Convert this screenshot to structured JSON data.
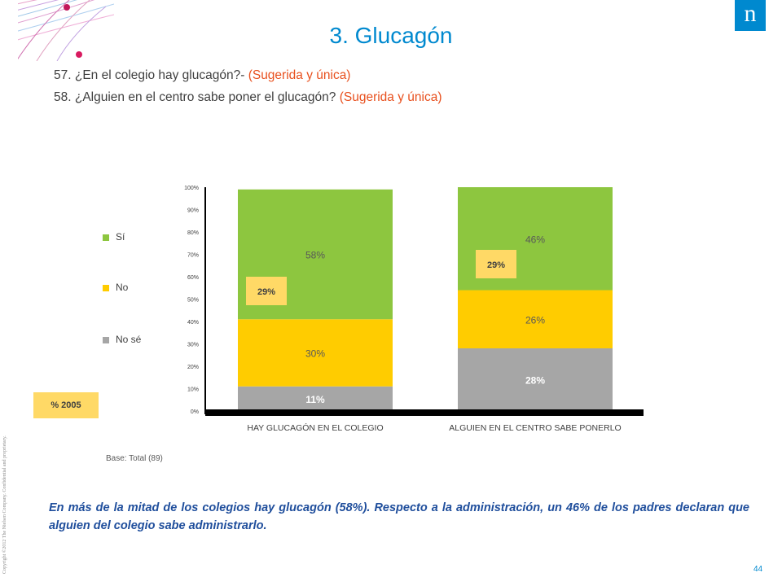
{
  "header": {
    "title": "3. Glucagón",
    "logo_letter": "n",
    "questions": [
      {
        "text": "57. ¿En el colegio hay glucagón?- ",
        "tag": "(Sugerida y única)"
      },
      {
        "text": "58. ¿Alguien en el centro sabe poner el glucagón? ",
        "tag": "(Sugerida y única)"
      }
    ]
  },
  "legend": [
    {
      "label": "Sí",
      "color": "#8dc63f"
    },
    {
      "label": "No",
      "color": "#ffcc00"
    },
    {
      "label": "No sé",
      "color": "#a6a6a6"
    }
  ],
  "year_label": "% 2005",
  "base_note": "Base: Total (89)",
  "chart_data": {
    "type": "bar",
    "stacked": true,
    "categories": [
      "HAY GLUCAGÓN EN EL COLEGIO",
      "ALGUIEN EN EL CENTRO SABE PONERLO"
    ],
    "series": [
      {
        "name": "No sé",
        "color": "#a6a6a6",
        "values": [
          11,
          28
        ],
        "labels": [
          "11%",
          "28%"
        ]
      },
      {
        "name": "No",
        "color": "#ffcc00",
        "values": [
          30,
          26
        ],
        "labels": [
          "30%",
          "26%"
        ]
      },
      {
        "name": "Sí",
        "color": "#8dc63f",
        "values": [
          58,
          46
        ],
        "labels": [
          "58%",
          "46%"
        ]
      }
    ],
    "comparison_2005": {
      "values": [
        29,
        29
      ],
      "labels": [
        "29%",
        "29%"
      ],
      "color": "#ffd966"
    },
    "ylim": [
      0,
      100
    ],
    "yticks": [
      "0%",
      "10%",
      "20%",
      "30%",
      "40%",
      "50%",
      "60%",
      "70%",
      "80%",
      "90%",
      "100%"
    ],
    "legend_position": "left"
  },
  "conclusion": "En más de la mitad de los colegios hay glucagón (58%). Respecto a la administración, un 46% de los padres declaran que alguien del colegio sabe administrarlo.",
  "copyright": "Copyright ©2012 The Nielsen Company. Confidential and proprietary.",
  "page_number": "44"
}
